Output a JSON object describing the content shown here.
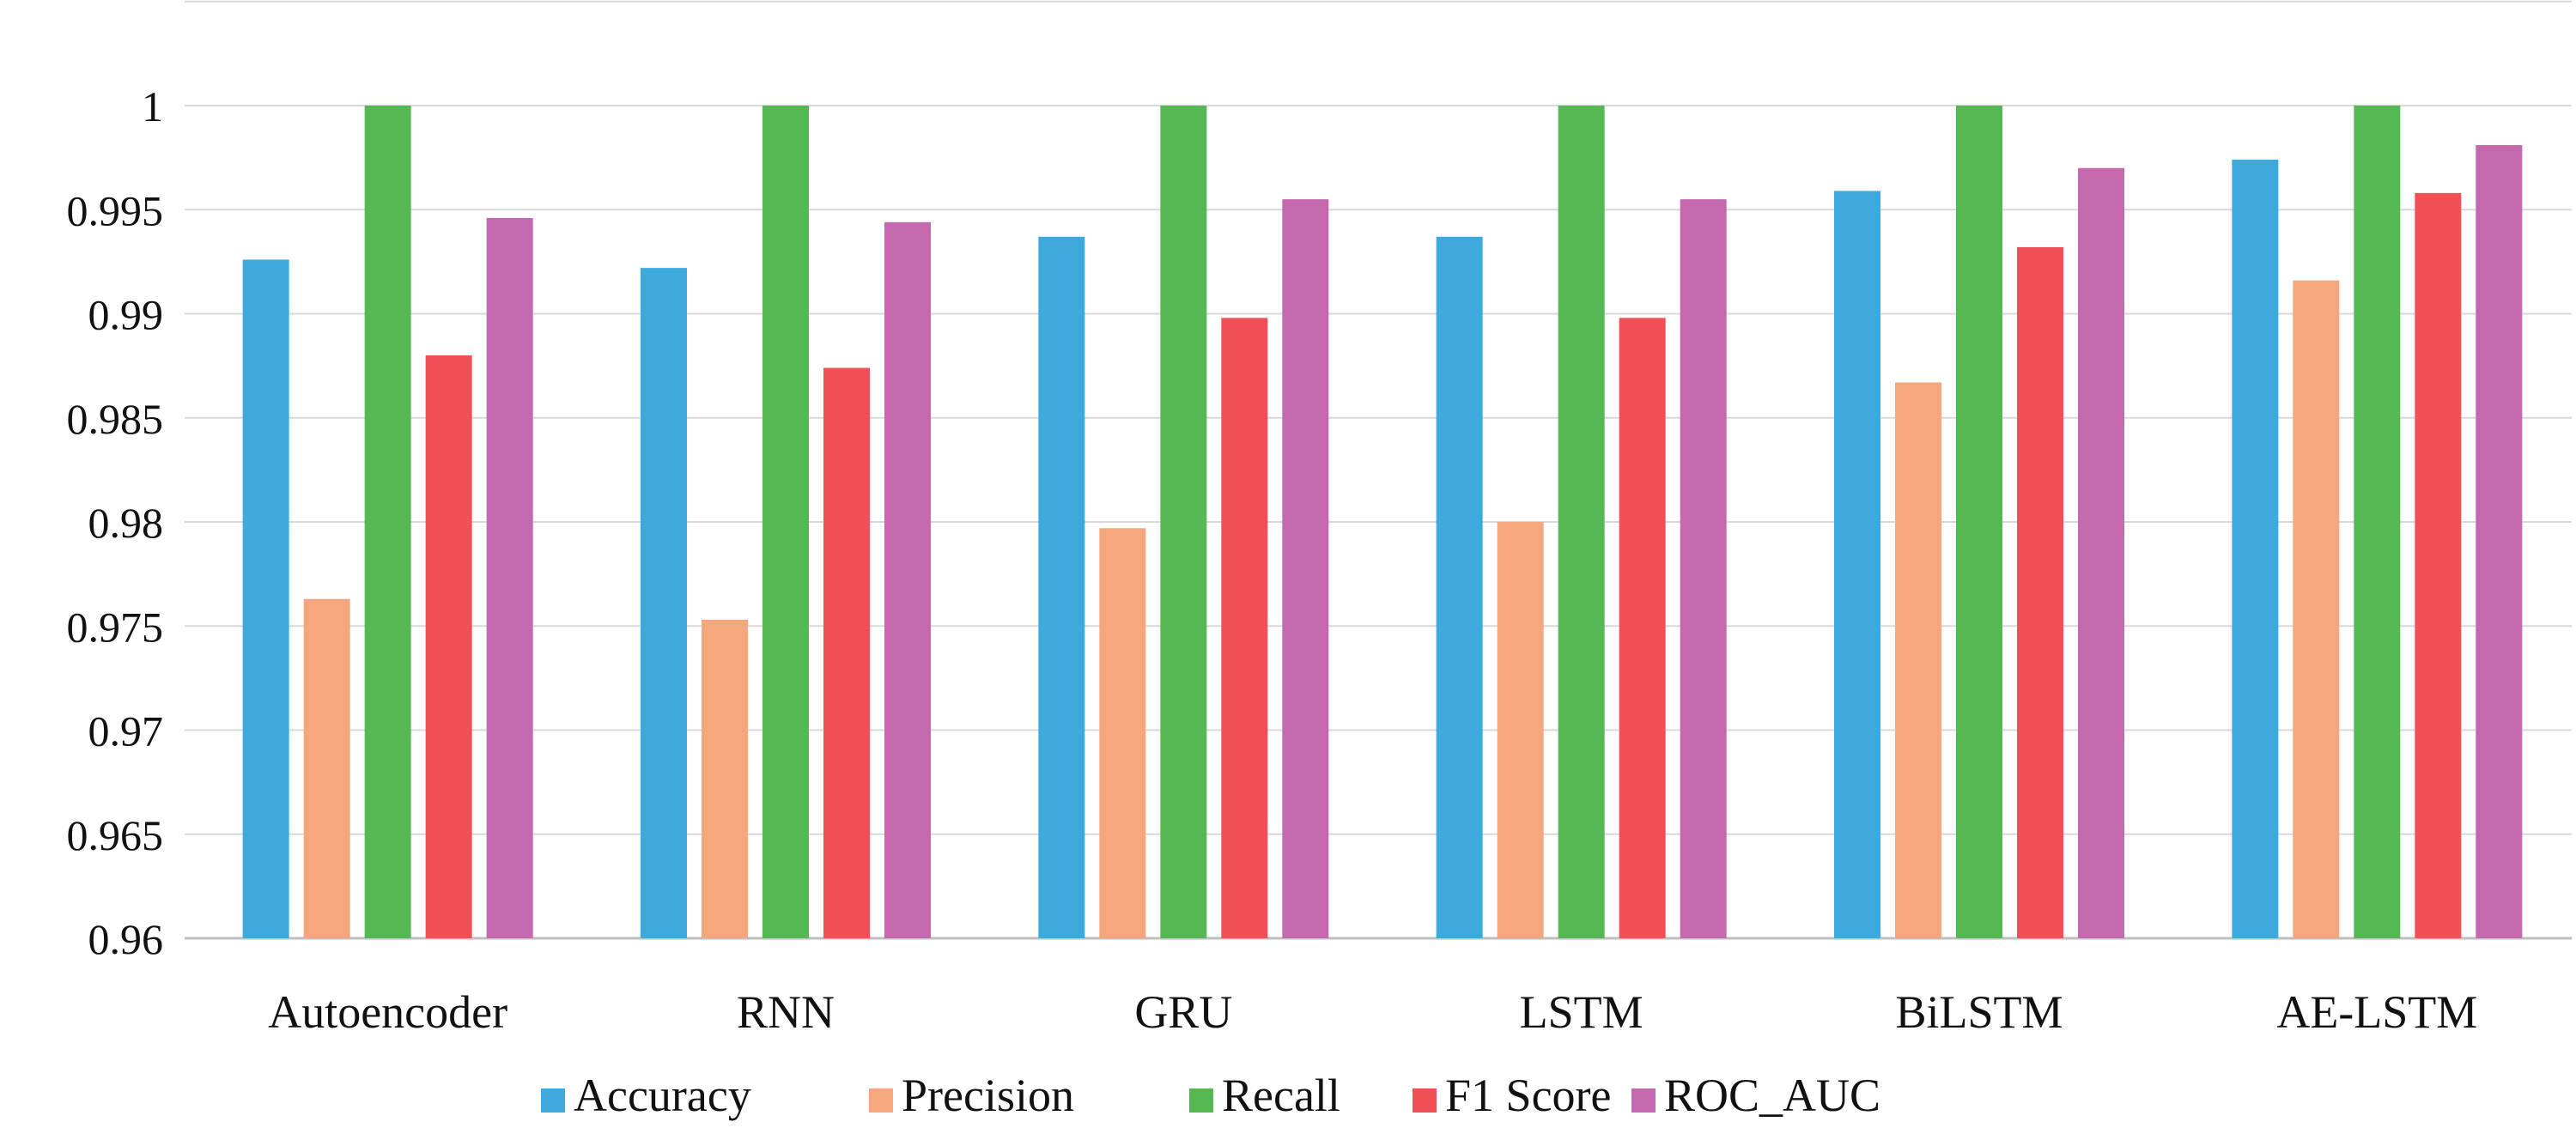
{
  "chart_data": {
    "type": "bar",
    "title": "",
    "xlabel": "",
    "ylabel": "",
    "categories": [
      "Autoencoder",
      "RNN",
      "GRU",
      "LSTM",
      "BiLSTM",
      "AE-LSTM"
    ],
    "ylim": [
      0.96,
      1.005
    ],
    "yticks": [
      0.96,
      0.965,
      0.97,
      0.975,
      0.98,
      0.985,
      0.99,
      0.995,
      1
    ],
    "ytick_labels": [
      "0.96",
      "0.965",
      "0.97",
      "0.975",
      "0.98",
      "0.985",
      "0.99",
      "0.995",
      "1"
    ],
    "grid": true,
    "legend_position": "bottom",
    "series": [
      {
        "name": "Accuracy",
        "color": "#3DA9DC",
        "values": [
          0.9926,
          0.9922,
          0.9937,
          0.9937,
          0.9959,
          0.9974
        ]
      },
      {
        "name": "Precision",
        "color": "#F4A77C",
        "values": [
          0.9763,
          0.9753,
          0.9797,
          0.98,
          0.9867,
          0.9916
        ]
      },
      {
        "name": "Recall",
        "color": "#56B853",
        "values": [
          1,
          1,
          1,
          1,
          1,
          1
        ]
      },
      {
        "name": "F1 Score",
        "color": "#EF4F55",
        "values": [
          0.988,
          0.9874,
          0.9898,
          0.9898,
          0.9932,
          0.9958
        ]
      },
      {
        "name": "ROC_AUC",
        "color": "#C469AD",
        "values": [
          0.9946,
          0.9944,
          0.9955,
          0.9955,
          0.997,
          0.9981
        ]
      }
    ]
  }
}
